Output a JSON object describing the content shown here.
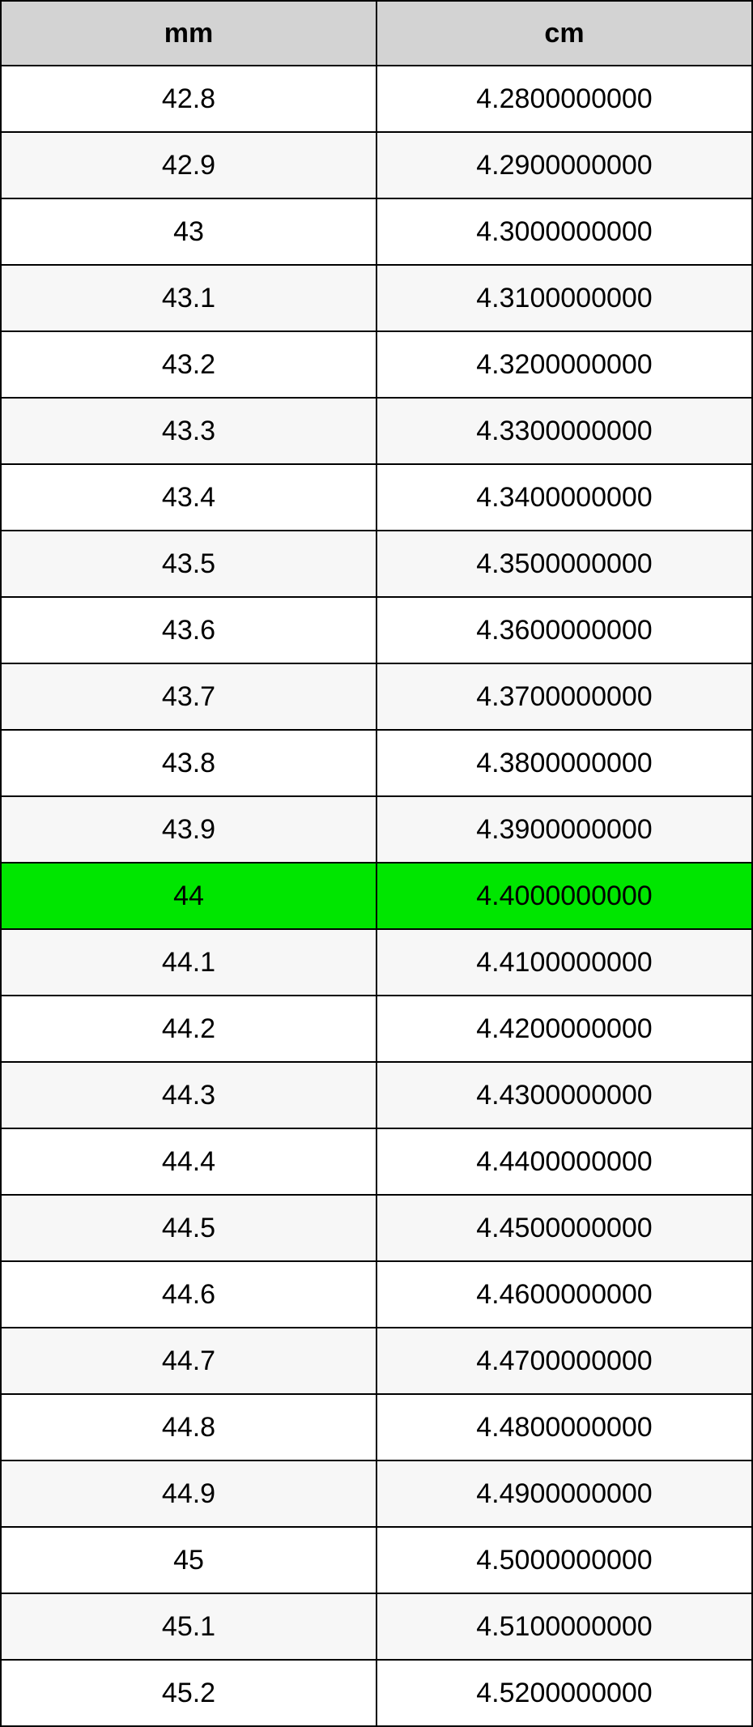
{
  "table": {
    "columns": [
      "mm",
      "cm"
    ],
    "header_bg": "#d3d3d3",
    "border_color": "#000000",
    "row_alt_bg": "#f7f7f7",
    "row_bg": "#ffffff",
    "highlight_bg": "#00e600",
    "font_size": 34,
    "rows": [
      {
        "mm": "42.8",
        "cm": "4.2800000000",
        "highlight": false
      },
      {
        "mm": "42.9",
        "cm": "4.2900000000",
        "highlight": false
      },
      {
        "mm": "43",
        "cm": "4.3000000000",
        "highlight": false
      },
      {
        "mm": "43.1",
        "cm": "4.3100000000",
        "highlight": false
      },
      {
        "mm": "43.2",
        "cm": "4.3200000000",
        "highlight": false
      },
      {
        "mm": "43.3",
        "cm": "4.3300000000",
        "highlight": false
      },
      {
        "mm": "43.4",
        "cm": "4.3400000000",
        "highlight": false
      },
      {
        "mm": "43.5",
        "cm": "4.3500000000",
        "highlight": false
      },
      {
        "mm": "43.6",
        "cm": "4.3600000000",
        "highlight": false
      },
      {
        "mm": "43.7",
        "cm": "4.3700000000",
        "highlight": false
      },
      {
        "mm": "43.8",
        "cm": "4.3800000000",
        "highlight": false
      },
      {
        "mm": "43.9",
        "cm": "4.3900000000",
        "highlight": false
      },
      {
        "mm": "44",
        "cm": "4.4000000000",
        "highlight": true
      },
      {
        "mm": "44.1",
        "cm": "4.4100000000",
        "highlight": false
      },
      {
        "mm": "44.2",
        "cm": "4.4200000000",
        "highlight": false
      },
      {
        "mm": "44.3",
        "cm": "4.4300000000",
        "highlight": false
      },
      {
        "mm": "44.4",
        "cm": "4.4400000000",
        "highlight": false
      },
      {
        "mm": "44.5",
        "cm": "4.4500000000",
        "highlight": false
      },
      {
        "mm": "44.6",
        "cm": "4.4600000000",
        "highlight": false
      },
      {
        "mm": "44.7",
        "cm": "4.4700000000",
        "highlight": false
      },
      {
        "mm": "44.8",
        "cm": "4.4800000000",
        "highlight": false
      },
      {
        "mm": "44.9",
        "cm": "4.4900000000",
        "highlight": false
      },
      {
        "mm": "45",
        "cm": "4.5000000000",
        "highlight": false
      },
      {
        "mm": "45.1",
        "cm": "4.5100000000",
        "highlight": false
      },
      {
        "mm": "45.2",
        "cm": "4.5200000000",
        "highlight": false
      }
    ]
  }
}
